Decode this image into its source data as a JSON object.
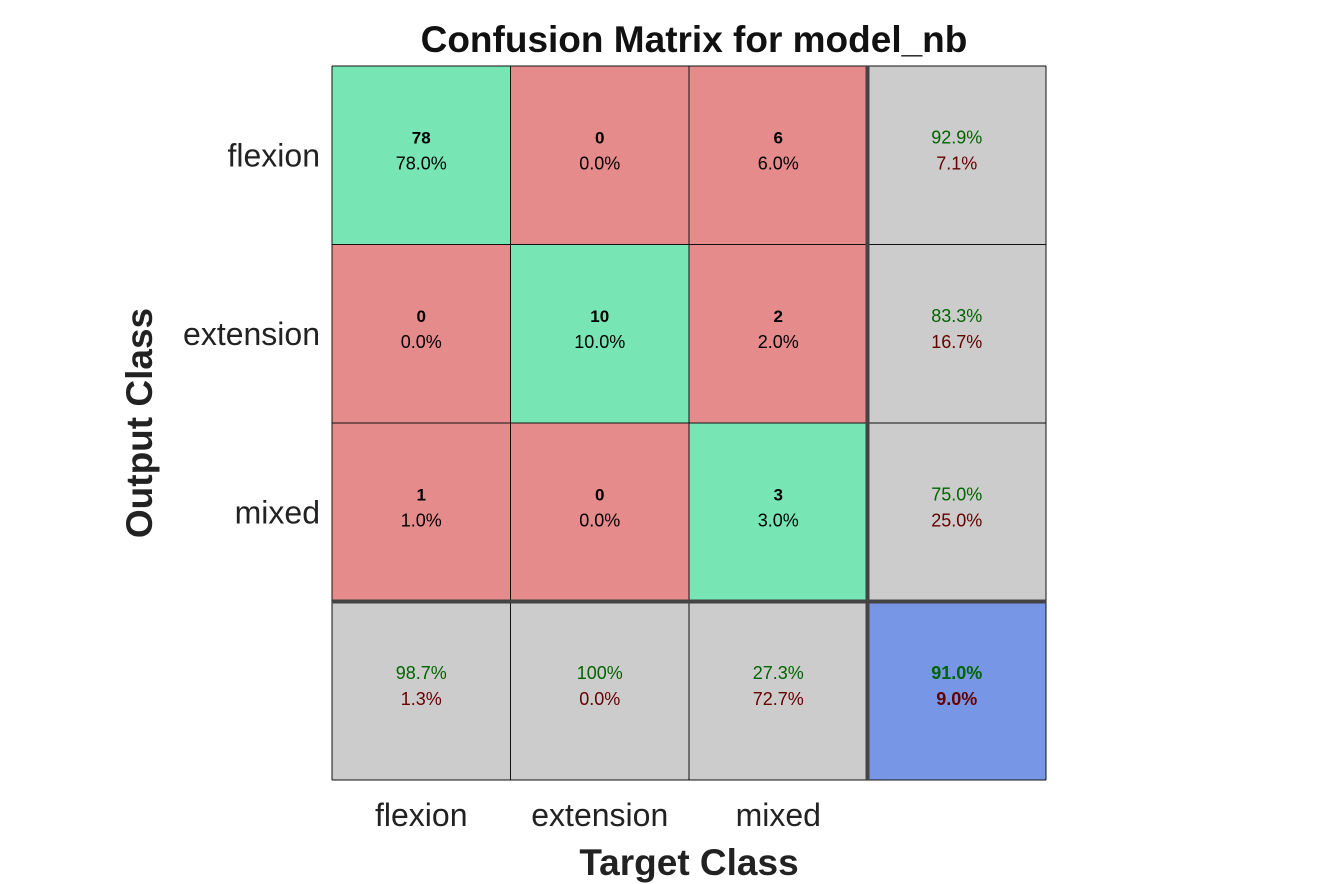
{
  "chart_data": {
    "type": "heatmap",
    "title": "Confusion Matrix for model_nb",
    "xlabel": "Target Class",
    "ylabel": "Output Class",
    "classes": [
      "flexion",
      "extension",
      "mixed"
    ],
    "matrix": [
      {
        "count": "78",
        "percent": "78.0%",
        "row": 0,
        "col": 0
      },
      {
        "count": "0",
        "percent": "0.0%",
        "row": 0,
        "col": 1
      },
      {
        "count": "6",
        "percent": "6.0%",
        "row": 0,
        "col": 2
      },
      {
        "count": "0",
        "percent": "0.0%",
        "row": 1,
        "col": 0
      },
      {
        "count": "10",
        "percent": "10.0%",
        "row": 1,
        "col": 1
      },
      {
        "count": "2",
        "percent": "2.0%",
        "row": 1,
        "col": 2
      },
      {
        "count": "1",
        "percent": "1.0%",
        "row": 2,
        "col": 0
      },
      {
        "count": "0",
        "percent": "0.0%",
        "row": 2,
        "col": 1
      },
      {
        "count": "3",
        "percent": "3.0%",
        "row": 2,
        "col": 2
      }
    ],
    "row_summary": [
      {
        "correct": "92.9%",
        "incorrect": "7.1%"
      },
      {
        "correct": "83.3%",
        "incorrect": "16.7%"
      },
      {
        "correct": "75.0%",
        "incorrect": "25.0%"
      }
    ],
    "col_summary": [
      {
        "correct": "98.7%",
        "incorrect": "1.3%"
      },
      {
        "correct": "100%",
        "incorrect": "0.0%"
      },
      {
        "correct": "27.3%",
        "incorrect": "72.7%"
      }
    ],
    "overall": {
      "correct": "91.0%",
      "incorrect": "9.0%"
    },
    "colors": {
      "diagonal": "#77e5b4",
      "off_diagonal": "#e68b8b",
      "summary": "#cccccc",
      "overall": "#7796e6",
      "correct_text": "#006400",
      "incorrect_text": "#650000"
    }
  }
}
